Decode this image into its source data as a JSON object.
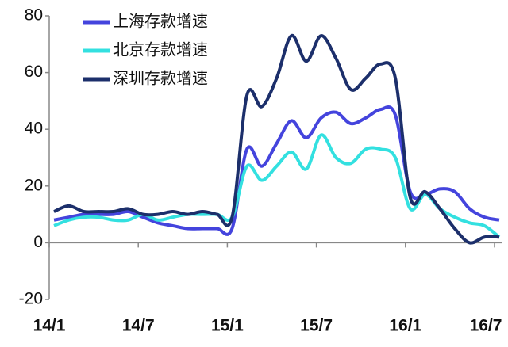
{
  "chart_data": {
    "type": "line",
    "categories": [
      "14/1",
      null,
      null,
      null,
      null,
      null,
      "14/7",
      null,
      null,
      null,
      null,
      null,
      "15/1",
      null,
      null,
      null,
      null,
      null,
      "15/7",
      null,
      null,
      null,
      null,
      null,
      "16/1",
      null,
      null,
      null,
      null,
      null,
      "16/7"
    ],
    "series": [
      {
        "name": "上海存款增速",
        "color": "#4444dd",
        "values": [
          8,
          9,
          10,
          10,
          10,
          11,
          9,
          7,
          6,
          5,
          5,
          5,
          5,
          33,
          27,
          35,
          43,
          37,
          44,
          46,
          42,
          44,
          47,
          45,
          18,
          17,
          19,
          18,
          12,
          9,
          8
        ]
      },
      {
        "name": "北京存款增速",
        "color": "#33e0e0",
        "values": [
          6,
          8,
          9,
          9,
          8,
          8,
          10,
          8,
          9,
          10,
          10,
          10,
          9,
          27,
          22,
          27,
          32,
          26,
          38,
          30,
          28,
          33,
          33,
          30,
          12,
          17,
          12,
          9,
          7,
          6,
          2
        ]
      },
      {
        "name": "深圳存款增速",
        "color": "#1c2f6b",
        "values": [
          11,
          13,
          11,
          11,
          11,
          12,
          10,
          10,
          11,
          10,
          11,
          10,
          9,
          52,
          48,
          58,
          73,
          64,
          73,
          65,
          54,
          58,
          63,
          58,
          16,
          18,
          12,
          5,
          0,
          2,
          2
        ]
      }
    ],
    "ylim": [
      -20,
      80
    ],
    "yticks": [
      {
        "value": -20,
        "label": "-20"
      },
      0,
      20,
      40,
      60,
      80
    ]
  }
}
